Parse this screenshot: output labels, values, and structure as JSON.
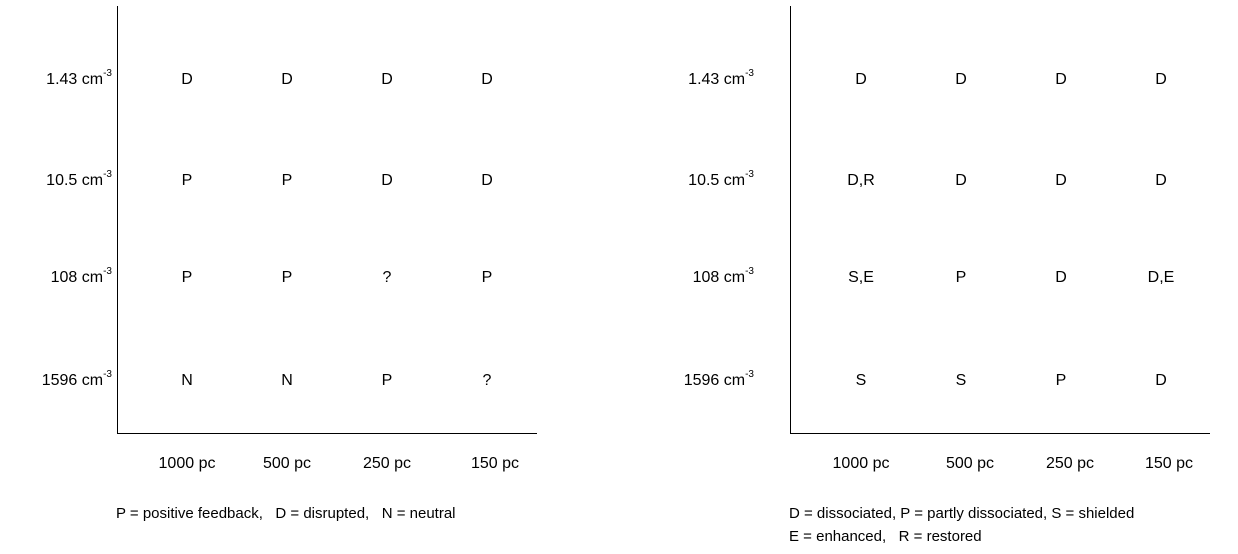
{
  "left": {
    "rows": [
      {
        "label": "1.43 cm",
        "exp": "-3",
        "cells": [
          "D",
          "D",
          "D",
          "D"
        ]
      },
      {
        "label": "10.5 cm",
        "exp": "-3",
        "cells": [
          "P",
          "P",
          "D",
          "D"
        ]
      },
      {
        "label": "108 cm",
        "exp": "-3",
        "cells": [
          "P",
          "P",
          "?",
          "P"
        ]
      },
      {
        "label": "1596 cm",
        "exp": "-3",
        "cells": [
          "N",
          "N",
          "P",
          "?"
        ]
      }
    ],
    "columns": [
      "1000 pc",
      "500 pc",
      "250 pc",
      "150 pc"
    ],
    "legend": [
      "P = positive feedback,   D = disrupted,   N = neutral"
    ]
  },
  "right": {
    "rows": [
      {
        "label": "1.43 cm",
        "exp": "-3",
        "cells": [
          "D",
          "D",
          "D",
          "D"
        ]
      },
      {
        "label": "10.5 cm",
        "exp": "-3",
        "cells": [
          "D,R",
          "D",
          "D",
          "D"
        ]
      },
      {
        "label": "108 cm",
        "exp": "-3",
        "cells": [
          "S,E",
          "P",
          "D",
          "D,E"
        ]
      },
      {
        "label": "1596 cm",
        "exp": "-3",
        "cells": [
          "S",
          "S",
          "P",
          "D"
        ]
      }
    ],
    "columns": [
      "1000 pc",
      "500 pc",
      "250 pc",
      "150 pc"
    ],
    "legend": [
      "D = dissociated, P = partly dissociated, S = shielded",
      "E = enhanced,   R = restored"
    ]
  }
}
